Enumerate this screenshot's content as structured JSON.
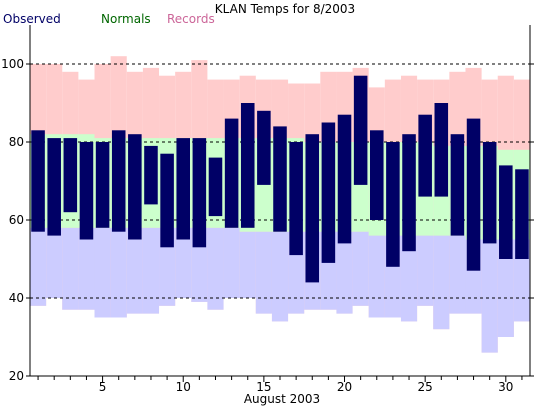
{
  "chart_data": {
    "type": "bar",
    "title": "KLAN Temps for 8/2003",
    "xlabel": "August 2003",
    "ylabel": "",
    "xlim": [
      0.5,
      31.5
    ],
    "ylim": [
      20,
      110
    ],
    "y_ticks": [
      20,
      40,
      60,
      80,
      100
    ],
    "x_ticks": [
      5,
      10,
      15,
      20,
      25,
      30
    ],
    "dashed_gridlines_y": [
      40,
      60,
      80,
      100
    ],
    "legend_placement": "top-left",
    "days": [
      1,
      2,
      3,
      4,
      5,
      6,
      7,
      8,
      9,
      10,
      11,
      12,
      13,
      14,
      15,
      16,
      17,
      18,
      19,
      20,
      21,
      22,
      23,
      24,
      25,
      26,
      27,
      28,
      29,
      30,
      31
    ],
    "series": [
      {
        "name": "Records",
        "color": "#ffcccc",
        "high": [
          100,
          100,
          98,
          96,
          100,
          102,
          98,
          99,
          97,
          98,
          101,
          96,
          96,
          97,
          96,
          96,
          95,
          95,
          98,
          98,
          99,
          94,
          96,
          97,
          96,
          96,
          98,
          99,
          96,
          97,
          96
        ],
        "low": [
          38,
          40,
          37,
          37,
          35,
          35,
          36,
          36,
          38,
          40,
          39,
          37,
          41,
          40,
          36,
          34,
          36,
          37,
          37,
          36,
          38,
          35,
          35,
          34,
          38,
          32,
          36,
          36,
          26,
          30,
          34
        ]
      },
      {
        "name": "Normals",
        "color": "#ccffcc",
        "high": [
          82,
          82,
          82,
          82,
          81,
          81,
          81,
          81,
          81,
          81,
          81,
          81,
          81,
          81,
          81,
          81,
          81,
          80,
          80,
          80,
          80,
          80,
          80,
          80,
          80,
          79,
          79,
          79,
          79,
          78,
          78
        ],
        "low": [
          58,
          58,
          58,
          58,
          58,
          58,
          58,
          58,
          58,
          58,
          58,
          58,
          58,
          57,
          57,
          57,
          57,
          57,
          57,
          57,
          57,
          56,
          56,
          56,
          56,
          56,
          56,
          55,
          55,
          55,
          55
        ]
      },
      {
        "name": "Observed",
        "color": "#000066",
        "high": [
          83,
          81,
          81,
          80,
          80,
          83,
          82,
          79,
          77,
          81,
          81,
          76,
          86,
          90,
          88,
          84,
          80,
          82,
          85,
          87,
          97,
          83,
          80,
          82,
          87,
          90,
          82,
          86,
          80,
          74,
          73
        ],
        "low": [
          57,
          56,
          62,
          55,
          58,
          57,
          55,
          64,
          53,
          55,
          53,
          61,
          58,
          58,
          69,
          57,
          51,
          44,
          49,
          54,
          69,
          60,
          48,
          52,
          66,
          66,
          56,
          47,
          54,
          50,
          50
        ]
      }
    ],
    "background_band": {
      "color": "#ccccff",
      "low": 40,
      "high": 60
    }
  }
}
